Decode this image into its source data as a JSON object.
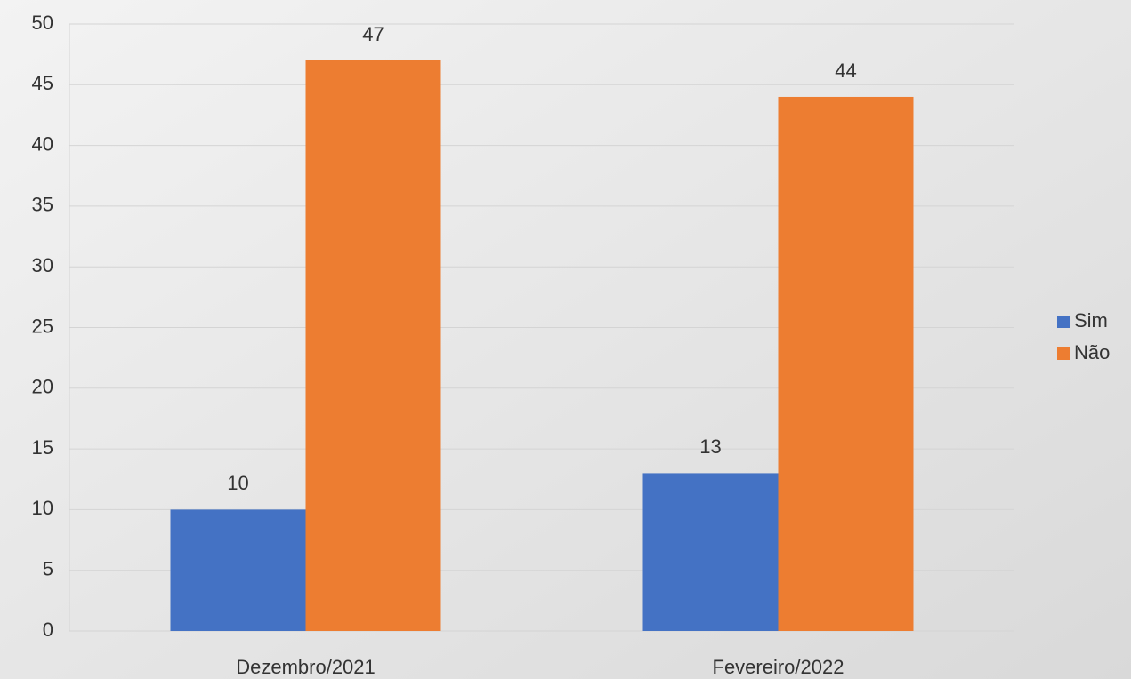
{
  "chart_data": {
    "type": "bar",
    "categories": [
      "Dezembro/2021",
      "Fevereiro/2022"
    ],
    "series": [
      {
        "name": "Sim",
        "color": "#4472c4",
        "values": [
          10,
          13
        ]
      },
      {
        "name": "Não",
        "color": "#ed7d31",
        "values": [
          47,
          44
        ]
      }
    ],
    "ylim": [
      0,
      50
    ],
    "yticks": [
      0,
      5,
      10,
      15,
      20,
      25,
      30,
      35,
      40,
      45,
      50
    ],
    "grid": true,
    "legend": "right",
    "data_labels": true
  }
}
